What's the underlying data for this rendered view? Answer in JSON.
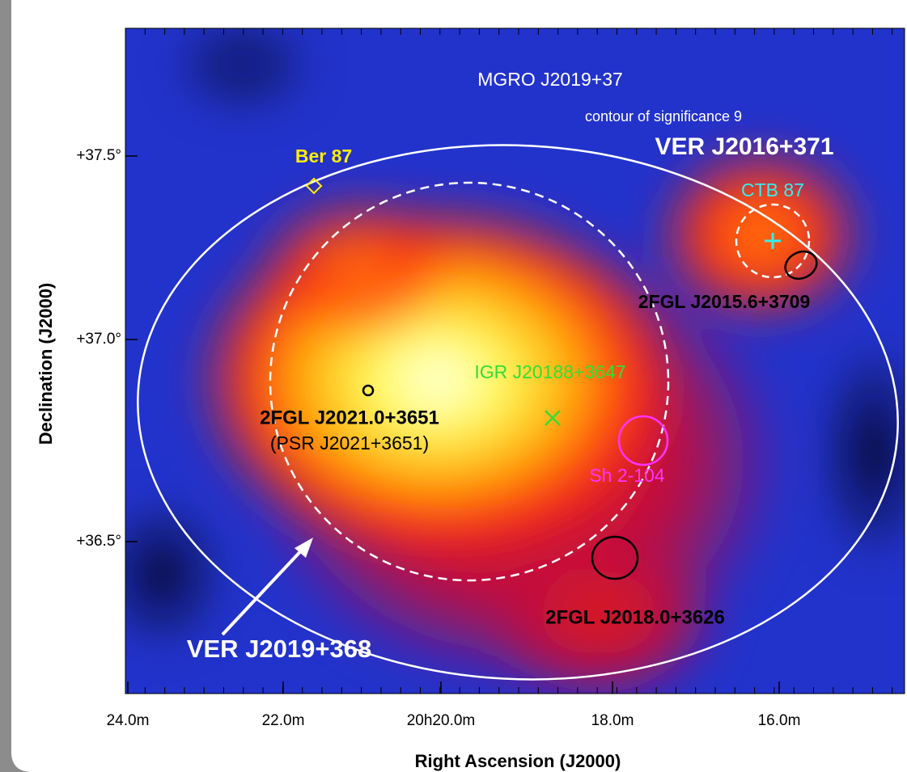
{
  "axes": {
    "x_label": "Right Ascension (J2000)",
    "y_label": "Declination (J2000)",
    "x_ticks": [
      "24.0m",
      "22.0m",
      "20h20.0m",
      "18.0m",
      "16.0m"
    ],
    "y_ticks": [
      "+37.5°",
      "+37.0°",
      "+36.5°"
    ]
  },
  "annotations": [
    "MGRO J2019+37",
    "contour of significance 9",
    "VER J2016+371",
    "Ber 87",
    "CTB 87",
    "2FGL J2015.6+3709",
    "IGR J20188+3647",
    "2FGL J2021.0+3651",
    "(PSR J2021+3651)",
    "Sh 2-104",
    "2FGL J2018.0+3626",
    "VER J2019+368"
  ]
}
